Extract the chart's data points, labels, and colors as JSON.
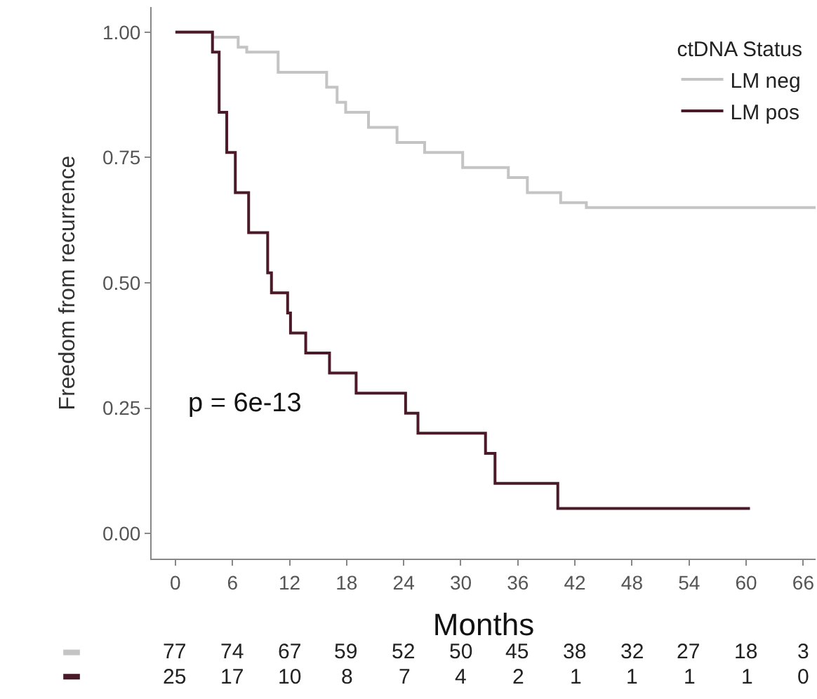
{
  "chart_data": {
    "type": "step",
    "xlabel": "Months",
    "ylabel": "Freedom from recurrence",
    "legend_title": "ctDNA Status",
    "legend": "top right",
    "xlim": [
      -2.5,
      67.3
    ],
    "xticks": [
      0,
      6,
      12,
      18,
      24,
      30,
      36,
      42,
      48,
      54,
      60,
      66
    ],
    "ylim": [
      -0.05,
      1.05
    ],
    "yticks": [
      {
        "value": 0,
        "label": "0.00"
      },
      {
        "value": 0.25,
        "label": "0.25"
      },
      {
        "value": 0.5,
        "label": "0.50"
      },
      {
        "value": 0.75,
        "label": "0.75"
      },
      {
        "value": 1,
        "label": "1.00"
      }
    ],
    "series": [
      {
        "name": "LM neg",
        "color": "#c4c4c4",
        "x": [
          0,
          3.9,
          6.6,
          7.5,
          10.8,
          15.9,
          17,
          17.9,
          20.3,
          23.3,
          26.2,
          30.2,
          35,
          37,
          40.5,
          43.2,
          67.3
        ],
        "values": [
          1,
          0.99,
          0.97,
          0.96,
          0.92,
          0.89,
          0.86,
          0.84,
          0.81,
          0.78,
          0.76,
          0.73,
          0.71,
          0.68,
          0.66,
          0.65,
          0.65
        ]
      },
      {
        "name": "LM pos",
        "color": "#4a1a28",
        "x": [
          0,
          3.9,
          4.6,
          5.4,
          6.3,
          7.7,
          9.7,
          10.1,
          11.8,
          12.1,
          13.7,
          16.2,
          19,
          24.2,
          25.5,
          32.6,
          33.6,
          40.2,
          60.4
        ],
        "values": [
          1,
          0.96,
          0.84,
          0.76,
          0.68,
          0.6,
          0.52,
          0.48,
          0.44,
          0.4,
          0.36,
          0.32,
          0.28,
          0.24,
          0.2,
          0.16,
          0.1,
          0.05,
          0.05
        ]
      }
    ],
    "annotations": [
      "p = 6e-13",
      "77",
      "74",
      "67",
      "59",
      "52",
      "50",
      "45",
      "38",
      "32",
      "27",
      "18",
      "3",
      "25",
      "17",
      "10",
      "8",
      "7",
      "4",
      "2",
      "1",
      "1",
      "1",
      "1",
      "0"
    ]
  }
}
